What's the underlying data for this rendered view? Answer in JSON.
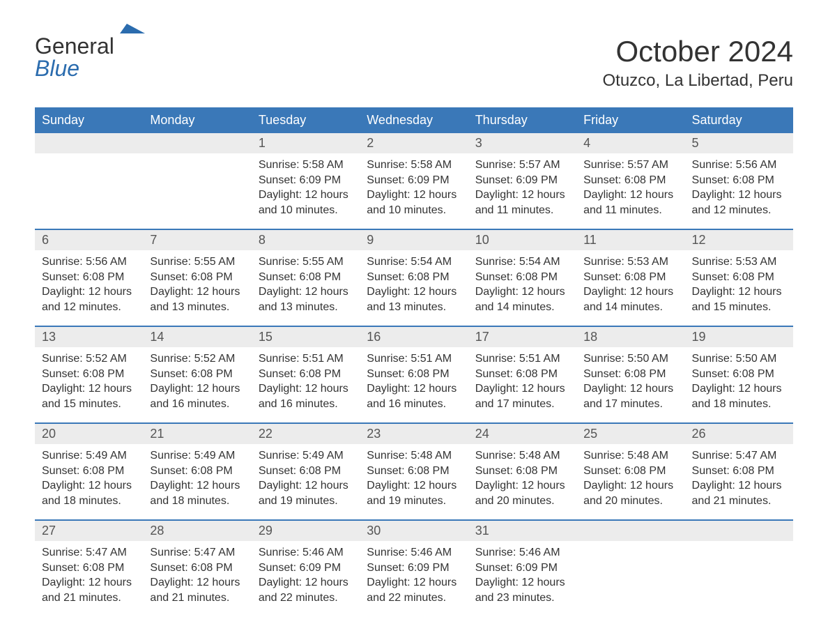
{
  "logo": {
    "word1": "General",
    "word2": "Blue"
  },
  "title": {
    "monthYear": "October 2024",
    "location": "Otuzco, La Libertad, Peru"
  },
  "colors": {
    "headerBg": "#3a78b8",
    "headerText": "#ffffff",
    "dayNumBg": "#ececec",
    "bodyText": "#333333",
    "logoBlue": "#2b6cae",
    "borderBlue": "#3a78b8"
  },
  "dayNames": [
    "Sunday",
    "Monday",
    "Tuesday",
    "Wednesday",
    "Thursday",
    "Friday",
    "Saturday"
  ],
  "weeks": [
    [
      null,
      null,
      {
        "d": "1",
        "sunrise": "Sunrise: 5:58 AM",
        "sunset": "Sunset: 6:09 PM",
        "daylight1": "Daylight: 12 hours",
        "daylight2": "and 10 minutes."
      },
      {
        "d": "2",
        "sunrise": "Sunrise: 5:58 AM",
        "sunset": "Sunset: 6:09 PM",
        "daylight1": "Daylight: 12 hours",
        "daylight2": "and 10 minutes."
      },
      {
        "d": "3",
        "sunrise": "Sunrise: 5:57 AM",
        "sunset": "Sunset: 6:09 PM",
        "daylight1": "Daylight: 12 hours",
        "daylight2": "and 11 minutes."
      },
      {
        "d": "4",
        "sunrise": "Sunrise: 5:57 AM",
        "sunset": "Sunset: 6:08 PM",
        "daylight1": "Daylight: 12 hours",
        "daylight2": "and 11 minutes."
      },
      {
        "d": "5",
        "sunrise": "Sunrise: 5:56 AM",
        "sunset": "Sunset: 6:08 PM",
        "daylight1": "Daylight: 12 hours",
        "daylight2": "and 12 minutes."
      }
    ],
    [
      {
        "d": "6",
        "sunrise": "Sunrise: 5:56 AM",
        "sunset": "Sunset: 6:08 PM",
        "daylight1": "Daylight: 12 hours",
        "daylight2": "and 12 minutes."
      },
      {
        "d": "7",
        "sunrise": "Sunrise: 5:55 AM",
        "sunset": "Sunset: 6:08 PM",
        "daylight1": "Daylight: 12 hours",
        "daylight2": "and 13 minutes."
      },
      {
        "d": "8",
        "sunrise": "Sunrise: 5:55 AM",
        "sunset": "Sunset: 6:08 PM",
        "daylight1": "Daylight: 12 hours",
        "daylight2": "and 13 minutes."
      },
      {
        "d": "9",
        "sunrise": "Sunrise: 5:54 AM",
        "sunset": "Sunset: 6:08 PM",
        "daylight1": "Daylight: 12 hours",
        "daylight2": "and 13 minutes."
      },
      {
        "d": "10",
        "sunrise": "Sunrise: 5:54 AM",
        "sunset": "Sunset: 6:08 PM",
        "daylight1": "Daylight: 12 hours",
        "daylight2": "and 14 minutes."
      },
      {
        "d": "11",
        "sunrise": "Sunrise: 5:53 AM",
        "sunset": "Sunset: 6:08 PM",
        "daylight1": "Daylight: 12 hours",
        "daylight2": "and 14 minutes."
      },
      {
        "d": "12",
        "sunrise": "Sunrise: 5:53 AM",
        "sunset": "Sunset: 6:08 PM",
        "daylight1": "Daylight: 12 hours",
        "daylight2": "and 15 minutes."
      }
    ],
    [
      {
        "d": "13",
        "sunrise": "Sunrise: 5:52 AM",
        "sunset": "Sunset: 6:08 PM",
        "daylight1": "Daylight: 12 hours",
        "daylight2": "and 15 minutes."
      },
      {
        "d": "14",
        "sunrise": "Sunrise: 5:52 AM",
        "sunset": "Sunset: 6:08 PM",
        "daylight1": "Daylight: 12 hours",
        "daylight2": "and 16 minutes."
      },
      {
        "d": "15",
        "sunrise": "Sunrise: 5:51 AM",
        "sunset": "Sunset: 6:08 PM",
        "daylight1": "Daylight: 12 hours",
        "daylight2": "and 16 minutes."
      },
      {
        "d": "16",
        "sunrise": "Sunrise: 5:51 AM",
        "sunset": "Sunset: 6:08 PM",
        "daylight1": "Daylight: 12 hours",
        "daylight2": "and 16 minutes."
      },
      {
        "d": "17",
        "sunrise": "Sunrise: 5:51 AM",
        "sunset": "Sunset: 6:08 PM",
        "daylight1": "Daylight: 12 hours",
        "daylight2": "and 17 minutes."
      },
      {
        "d": "18",
        "sunrise": "Sunrise: 5:50 AM",
        "sunset": "Sunset: 6:08 PM",
        "daylight1": "Daylight: 12 hours",
        "daylight2": "and 17 minutes."
      },
      {
        "d": "19",
        "sunrise": "Sunrise: 5:50 AM",
        "sunset": "Sunset: 6:08 PM",
        "daylight1": "Daylight: 12 hours",
        "daylight2": "and 18 minutes."
      }
    ],
    [
      {
        "d": "20",
        "sunrise": "Sunrise: 5:49 AM",
        "sunset": "Sunset: 6:08 PM",
        "daylight1": "Daylight: 12 hours",
        "daylight2": "and 18 minutes."
      },
      {
        "d": "21",
        "sunrise": "Sunrise: 5:49 AM",
        "sunset": "Sunset: 6:08 PM",
        "daylight1": "Daylight: 12 hours",
        "daylight2": "and 18 minutes."
      },
      {
        "d": "22",
        "sunrise": "Sunrise: 5:49 AM",
        "sunset": "Sunset: 6:08 PM",
        "daylight1": "Daylight: 12 hours",
        "daylight2": "and 19 minutes."
      },
      {
        "d": "23",
        "sunrise": "Sunrise: 5:48 AM",
        "sunset": "Sunset: 6:08 PM",
        "daylight1": "Daylight: 12 hours",
        "daylight2": "and 19 minutes."
      },
      {
        "d": "24",
        "sunrise": "Sunrise: 5:48 AM",
        "sunset": "Sunset: 6:08 PM",
        "daylight1": "Daylight: 12 hours",
        "daylight2": "and 20 minutes."
      },
      {
        "d": "25",
        "sunrise": "Sunrise: 5:48 AM",
        "sunset": "Sunset: 6:08 PM",
        "daylight1": "Daylight: 12 hours",
        "daylight2": "and 20 minutes."
      },
      {
        "d": "26",
        "sunrise": "Sunrise: 5:47 AM",
        "sunset": "Sunset: 6:08 PM",
        "daylight1": "Daylight: 12 hours",
        "daylight2": "and 21 minutes."
      }
    ],
    [
      {
        "d": "27",
        "sunrise": "Sunrise: 5:47 AM",
        "sunset": "Sunset: 6:08 PM",
        "daylight1": "Daylight: 12 hours",
        "daylight2": "and 21 minutes."
      },
      {
        "d": "28",
        "sunrise": "Sunrise: 5:47 AM",
        "sunset": "Sunset: 6:08 PM",
        "daylight1": "Daylight: 12 hours",
        "daylight2": "and 21 minutes."
      },
      {
        "d": "29",
        "sunrise": "Sunrise: 5:46 AM",
        "sunset": "Sunset: 6:09 PM",
        "daylight1": "Daylight: 12 hours",
        "daylight2": "and 22 minutes."
      },
      {
        "d": "30",
        "sunrise": "Sunrise: 5:46 AM",
        "sunset": "Sunset: 6:09 PM",
        "daylight1": "Daylight: 12 hours",
        "daylight2": "and 22 minutes."
      },
      {
        "d": "31",
        "sunrise": "Sunrise: 5:46 AM",
        "sunset": "Sunset: 6:09 PM",
        "daylight1": "Daylight: 12 hours",
        "daylight2": "and 23 minutes."
      },
      null,
      null
    ]
  ]
}
